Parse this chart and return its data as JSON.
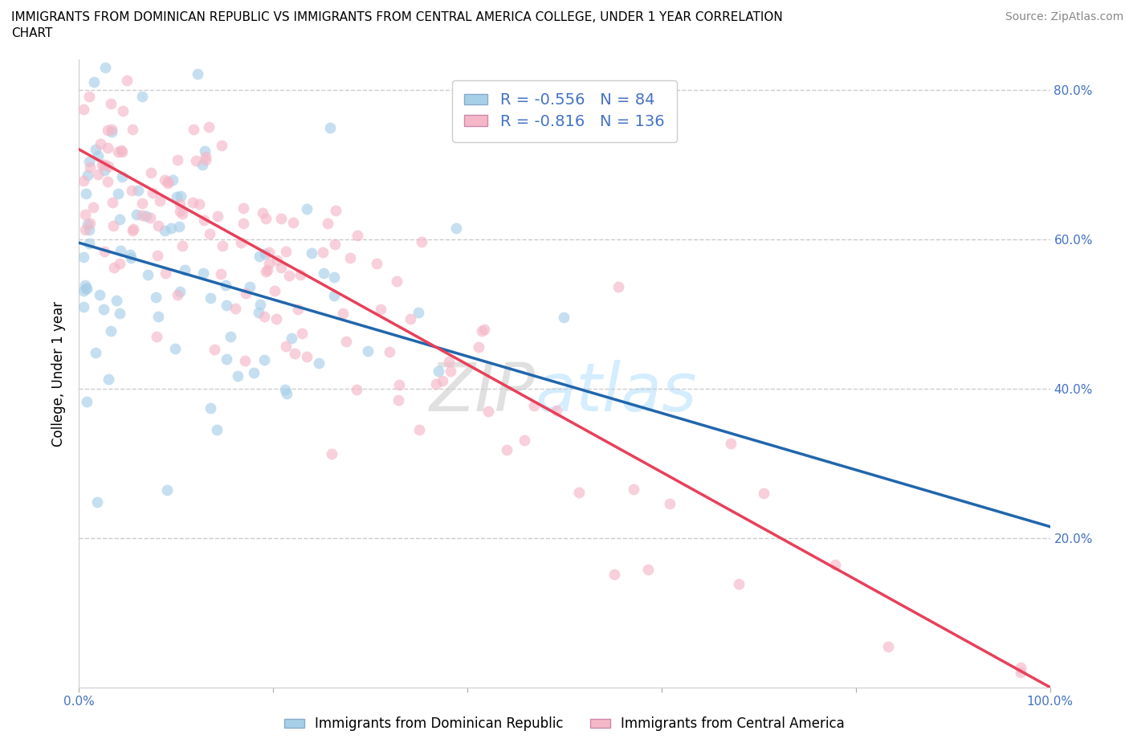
{
  "title_line1": "IMMIGRANTS FROM DOMINICAN REPUBLIC VS IMMIGRANTS FROM CENTRAL AMERICA COLLEGE, UNDER 1 YEAR CORRELATION",
  "title_line2": "CHART",
  "source_text": "Source: ZipAtlas.com",
  "ylabel": "College, Under 1 year",
  "legend_label_blue": "Immigrants from Dominican Republic",
  "legend_label_pink": "Immigrants from Central America",
  "R_blue": -0.556,
  "N_blue": 84,
  "R_pink": -0.816,
  "N_pink": 136,
  "color_blue": "#a8cfe8",
  "color_pink": "#f4b8c8",
  "line_color_blue": "#2166ac",
  "line_color_pink": "#e8405a",
  "dash_color_blue": "#a8cfe8",
  "dash_color_pink": "#f4b8c8",
  "xlim": [
    0.0,
    1.0
  ],
  "ylim": [
    0.0,
    0.84
  ],
  "xticks": [
    0.0,
    0.2,
    0.4,
    0.6,
    0.8,
    1.0
  ],
  "yticks": [
    0.2,
    0.4,
    0.6,
    0.8
  ],
  "xticklabels_left": [
    "0.0%"
  ],
  "xticklabels_right": [
    "100.0%"
  ],
  "yticklabels": [
    "20.0%",
    "40.0%",
    "60.0%",
    "80.0%"
  ],
  "blue_intercept": 0.595,
  "blue_slope": -0.38,
  "pink_intercept": 0.72,
  "pink_slope": -0.72
}
